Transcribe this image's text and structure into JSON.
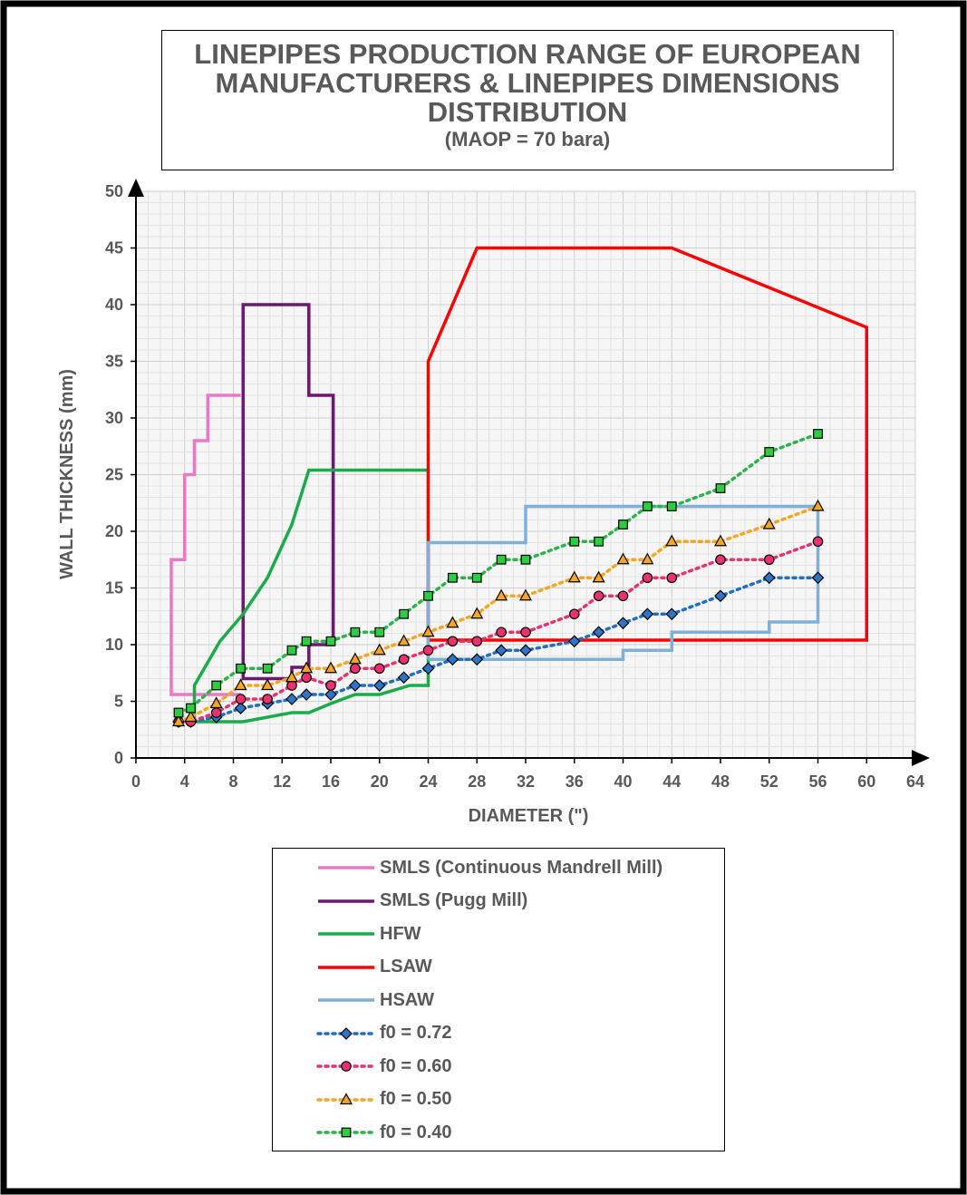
{
  "chart_data": {
    "type": "line",
    "title_lines": [
      "LINEPIPES PRODUCTION RANGE OF EUROPEAN",
      "MANUFACTURERS & LINEPIPES DIMENSIONS",
      "DISTRIBUTION"
    ],
    "subtitle": "(MAOP = 70 bara)",
    "xlabel": "DIAMETER (\")",
    "ylabel": "WALL THICKNESS (mm)",
    "xlim": [
      0,
      64
    ],
    "ylim": [
      0,
      50
    ],
    "xticks": [
      "0",
      "4",
      "8",
      "12",
      "16",
      "20",
      "24",
      "28",
      "32",
      "36",
      "40",
      "44",
      "48",
      "52",
      "56",
      "60",
      "64"
    ],
    "yticks": [
      "0",
      "5",
      "10",
      "15",
      "20",
      "25",
      "30",
      "35",
      "40",
      "45",
      "50"
    ],
    "grid": true,
    "legend_position": "bottom",
    "series": [
      {
        "name": "SMLS (Continuous Mandrell Mill)",
        "color": "#e879c8",
        "style": "solid",
        "marker": "none",
        "x": [
          8.6,
          5.9,
          5.9,
          4.8,
          4.8,
          4,
          4,
          2.9,
          2.9,
          8.6
        ],
        "y": [
          32,
          32,
          28,
          28,
          25,
          25,
          17.5,
          17.5,
          5.6,
          5.6
        ]
      },
      {
        "name": "SMLS (Pugg Mill)",
        "color": "#6a1a6e",
        "style": "solid",
        "marker": "none",
        "x": [
          8.8,
          8.8,
          14.2,
          14.2,
          16.2,
          16.2,
          14.2,
          14.2,
          12.8,
          12.8,
          8.8,
          8.8
        ],
        "y": [
          8,
          40,
          40,
          32,
          32,
          10,
          10,
          8,
          8,
          7,
          7,
          8
        ]
      },
      {
        "name": "HFW",
        "color": "#1aab4a",
        "style": "solid",
        "marker": "none",
        "x": [
          4.8,
          4.8,
          6.9,
          8.8,
          10.8,
          12.8,
          14.2,
          24,
          24,
          22.5,
          20,
          18,
          16,
          14.2,
          12.8,
          10.8,
          8.8,
          4.8
        ],
        "y": [
          3.2,
          6.4,
          10.3,
          12.7,
          15.9,
          20.6,
          25.4,
          25.4,
          6.4,
          6.4,
          5.6,
          5.6,
          4.8,
          4.0,
          4.0,
          3.6,
          3.2,
          3.2
        ]
      },
      {
        "name": "LSAW",
        "color": "#ff0000",
        "style": "solid",
        "marker": "none",
        "x": [
          24,
          24,
          28,
          44,
          60,
          60,
          24
        ],
        "y": [
          10.4,
          35,
          45,
          45,
          38,
          10.4,
          10.4
        ]
      },
      {
        "name": "HSAW",
        "color": "#7fb0d8",
        "style": "solid",
        "marker": "none",
        "x": [
          24,
          24,
          32,
          32,
          56,
          56,
          52,
          52,
          44,
          44,
          40,
          40,
          24,
          24
        ],
        "y": [
          8.7,
          19,
          19,
          22.2,
          22.2,
          12,
          12,
          11.1,
          11.1,
          9.5,
          9.5,
          8.7,
          8.7,
          8.7
        ]
      },
      {
        "name": "f0 = 0.72",
        "color": "#1f6fc2",
        "style": "dotted",
        "marker": "diamond",
        "x": [
          3.5,
          4.5,
          6.6,
          8.6,
          10.8,
          12.8,
          14,
          16,
          18,
          20,
          22,
          24,
          26,
          28,
          30,
          32,
          36,
          38,
          40,
          42,
          44,
          48,
          52,
          56
        ],
        "y": [
          3.2,
          3.2,
          3.6,
          4.4,
          4.8,
          5.2,
          5.6,
          5.6,
          6.4,
          6.4,
          7.1,
          7.9,
          8.7,
          8.7,
          9.5,
          9.5,
          10.3,
          11.1,
          11.9,
          12.7,
          12.7,
          14.3,
          15.9,
          15.9
        ]
      },
      {
        "name": "f0 = 0.60",
        "color": "#e8336e",
        "style": "dotted",
        "marker": "circle",
        "x": [
          3.5,
          4.5,
          6.6,
          8.6,
          10.8,
          12.8,
          14,
          16,
          18,
          20,
          22,
          24,
          26,
          28,
          30,
          32,
          36,
          38,
          40,
          42,
          44,
          48,
          52,
          56
        ],
        "y": [
          3.2,
          3.2,
          4.0,
          5.2,
          5.2,
          6.4,
          7.1,
          6.4,
          7.9,
          7.9,
          8.7,
          9.5,
          10.3,
          10.3,
          11.1,
          11.1,
          12.7,
          14.3,
          14.3,
          15.9,
          15.9,
          17.5,
          17.5,
          19.1
        ]
      },
      {
        "name": "f0 = 0.50",
        "color": "#f5a623",
        "style": "dotted",
        "marker": "triangle",
        "x": [
          3.5,
          4.5,
          6.6,
          8.6,
          10.8,
          12.8,
          14,
          16,
          18,
          20,
          22,
          24,
          26,
          28,
          30,
          32,
          36,
          38,
          40,
          42,
          44,
          48,
          52,
          56
        ],
        "y": [
          3.2,
          3.6,
          4.8,
          6.4,
          6.4,
          7.1,
          7.9,
          7.9,
          8.7,
          9.5,
          10.3,
          11.1,
          11.9,
          12.7,
          14.3,
          14.3,
          15.9,
          15.9,
          17.5,
          17.5,
          19.1,
          19.1,
          20.6,
          22.2
        ]
      },
      {
        "name": "f0 = 0.40",
        "color": "#2db34a",
        "style": "dotted",
        "marker": "square",
        "x": [
          3.5,
          4.5,
          6.6,
          8.6,
          10.8,
          12.8,
          14,
          16,
          18,
          20,
          22,
          24,
          26,
          28,
          30,
          32,
          36,
          38,
          40,
          42,
          44,
          48,
          52,
          56
        ],
        "y": [
          4.0,
          4.4,
          6.4,
          7.9,
          7.9,
          9.5,
          10.3,
          10.3,
          11.1,
          11.1,
          12.7,
          14.3,
          15.9,
          15.9,
          17.5,
          17.5,
          19.1,
          19.1,
          20.6,
          22.2,
          22.2,
          23.8,
          27.0,
          28.6
        ]
      }
    ]
  }
}
